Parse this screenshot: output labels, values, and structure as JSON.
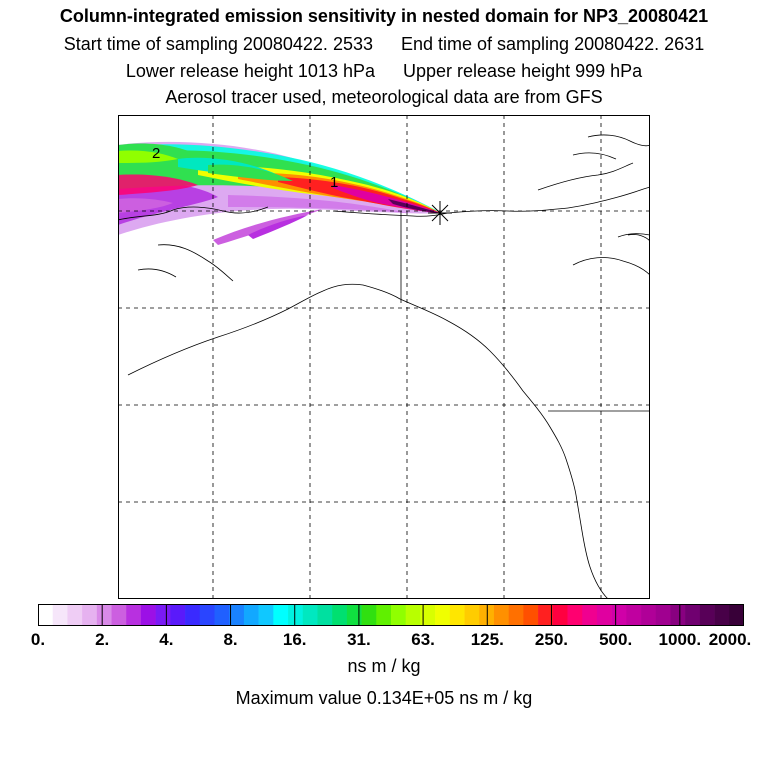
{
  "header": {
    "title": "Column-integrated emission sensitivity in nested domain for NP3_20080421",
    "start_time": "Start time of sampling 20080422.  2533",
    "end_time": "End time of sampling 20080422.  2631",
    "lower_release": "Lower release height 1013 hPa",
    "upper_release": "Upper release height  999 hPa",
    "note": "Aerosol tracer used, meteorological data are from GFS"
  },
  "map": {
    "labels": [
      {
        "text": "2"
      },
      {
        "text": "1"
      }
    ]
  },
  "colorbar": {
    "tick_labels": [
      "0.",
      "2.",
      "4.",
      "8.",
      "16.",
      "31.",
      "63.",
      "125.",
      "250.",
      "500.",
      "1000.",
      "2000."
    ],
    "colors": [
      "#ffffff",
      "#f6e6fa",
      "#efcdf5",
      "#e6b2f0",
      "#d98ae8",
      "#cc5fe0",
      "#b830e0",
      "#9c10e6",
      "#7a1af5",
      "#5a1afa",
      "#3a2aff",
      "#2a45ff",
      "#2060ff",
      "#1a82ff",
      "#12a8ff",
      "#10c8ff",
      "#00ffff",
      "#00f2e0",
      "#00e8c0",
      "#00e0a0",
      "#00e070",
      "#10e040",
      "#30e010",
      "#60f000",
      "#90ff00",
      "#b8ff00",
      "#d8ff00",
      "#f0ff00",
      "#ffe600",
      "#ffcc00",
      "#ffb000",
      "#ff9000",
      "#ff7000",
      "#ff5000",
      "#ff2020",
      "#ff0040",
      "#ff0070",
      "#f00090",
      "#e000a0",
      "#d000a8",
      "#c000a0",
      "#b00098",
      "#a00090",
      "#880080",
      "#700070",
      "#580058",
      "#480048",
      "#380038"
    ],
    "unit": "ns m / kg",
    "max_value": "Maximum value  0.134E+05 ns m / kg"
  }
}
